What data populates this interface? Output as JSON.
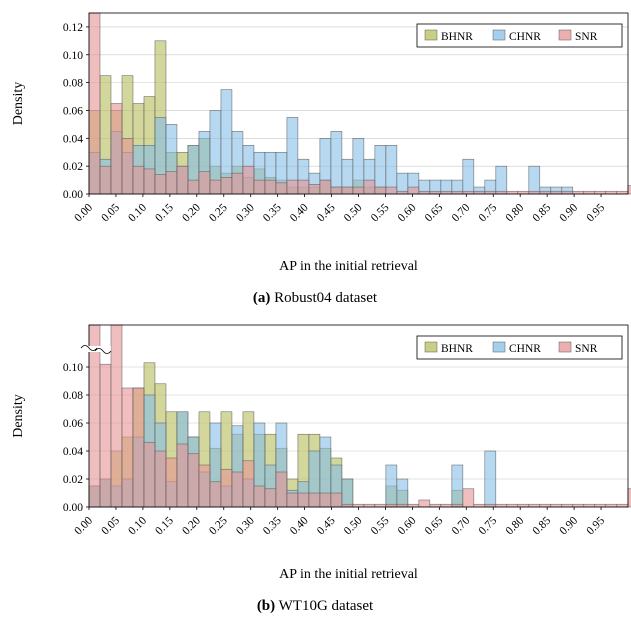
{
  "chart_data": [
    {
      "type": "bar",
      "caption_label": "(a)",
      "caption_text": "Robust04 dataset",
      "xlabel": "AP in the initial retrieval",
      "ylabel": "Density",
      "xlim": [
        0.0,
        1.0
      ],
      "ylim": [
        0,
        0.13
      ],
      "bin_width": 0.0204,
      "x_ticks": [
        "0.00",
        "0.05",
        "0.10",
        "0.15",
        "0.20",
        "0.25",
        "0.30",
        "0.35",
        "0.40",
        "0.45",
        "0.50",
        "0.55",
        "0.60",
        "0.65",
        "0.70",
        "0.75",
        "0.80",
        "0.85",
        "0.90",
        "0.95"
      ],
      "y_ticks": [
        "0.00",
        "0.02",
        "0.04",
        "0.06",
        "0.08",
        "0.10",
        "0.12"
      ],
      "legend_position": "top-right",
      "grid": "horizontal",
      "series": [
        {
          "name": "BHNR",
          "color": "#b5bd5a",
          "values": [
            0.06,
            0.085,
            0.06,
            0.085,
            0.065,
            0.07,
            0.11,
            0.03,
            0.03,
            0.035,
            0.04,
            0.02,
            0.015,
            0.02,
            0.012,
            0.018,
            0.012,
            0.01,
            0.005,
            0.005,
            0.005,
            0.01,
            0.005,
            0.005,
            0.01,
            0.005,
            0.005,
            0,
            0,
            0,
            0,
            0,
            0,
            0,
            0,
            0,
            0,
            0,
            0,
            0,
            0,
            0,
            0,
            0,
            0,
            0,
            0,
            0,
            0,
            0
          ]
        },
        {
          "name": "CHNR",
          "color": "#86bee8",
          "values": [
            0.03,
            0.025,
            0.045,
            0.03,
            0.035,
            0.035,
            0.055,
            0.05,
            0.02,
            0.035,
            0.045,
            0.06,
            0.075,
            0.045,
            0.035,
            0.03,
            0.03,
            0.03,
            0.055,
            0.025,
            0.015,
            0.04,
            0.045,
            0.025,
            0.04,
            0.025,
            0.035,
            0.035,
            0.015,
            0.015,
            0.01,
            0.01,
            0.01,
            0.01,
            0.025,
            0.005,
            0.01,
            0.02,
            0,
            0,
            0.02,
            0.005,
            0.005,
            0.005,
            0,
            0,
            0,
            0,
            0,
            0
          ]
        },
        {
          "name": "SNR",
          "color": "#e69394",
          "values": [
            0.13,
            0.02,
            0.065,
            0.04,
            0.02,
            0.018,
            0.014,
            0.016,
            0.02,
            0.01,
            0.016,
            0.01,
            0.012,
            0.015,
            0.02,
            0.01,
            0.01,
            0.008,
            0.01,
            0.01,
            0.007,
            0.01,
            0.005,
            0.005,
            0.005,
            0.01,
            0.005,
            0.005,
            0.002,
            0.005,
            0.002,
            0.002,
            0.002,
            0.002,
            0.002,
            0.002,
            0.002,
            0.002,
            0.002,
            0.002,
            0.002,
            0.002,
            0.002,
            0.002,
            0.002,
            0.002,
            0.002,
            0.002,
            0.002,
            0.006
          ]
        }
      ]
    },
    {
      "type": "bar",
      "caption_label": "(b)",
      "caption_text": "WT10G dataset",
      "xlabel": "AP in the initial retrieval",
      "ylabel": "Density",
      "xlim": [
        0.0,
        1.0
      ],
      "ylim": [
        0,
        0.13
      ],
      "axis_break": true,
      "bin_width": 0.0204,
      "x_ticks": [
        "0.00",
        "0.05",
        "0.10",
        "0.15",
        "0.20",
        "0.25",
        "0.30",
        "0.35",
        "0.40",
        "0.45",
        "0.50",
        "0.55",
        "0.60",
        "0.65",
        "0.70",
        "0.75",
        "0.80",
        "0.85",
        "0.90",
        "0.95"
      ],
      "y_ticks": [
        "0.00",
        "0.02",
        "0.04",
        "0.06",
        "0.08",
        "0.10"
      ],
      "legend_position": "top-right",
      "grid": "horizontal",
      "series": [
        {
          "name": "BHNR",
          "color": "#b5bd5a",
          "values": [
            0.015,
            0.02,
            0.04,
            0.05,
            0.085,
            0.103,
            0.088,
            0.068,
            0.068,
            0.05,
            0.068,
            0.042,
            0.068,
            0.052,
            0.068,
            0.052,
            0.052,
            0.042,
            0.02,
            0.052,
            0.052,
            0.042,
            0.035,
            0.02,
            0,
            0,
            0,
            0.015,
            0.012,
            0,
            0,
            0,
            0,
            0.012,
            0,
            0,
            0,
            0,
            0,
            0,
            0,
            0,
            0,
            0,
            0,
            0,
            0,
            0,
            0,
            0
          ]
        },
        {
          "name": "CHNR",
          "color": "#86bee8",
          "values": [
            0.015,
            0.02,
            0.015,
            0.02,
            0.05,
            0.08,
            0.06,
            0.018,
            0.068,
            0.05,
            0.025,
            0.06,
            0.015,
            0.058,
            0.02,
            0.06,
            0.03,
            0.06,
            0.012,
            0.018,
            0.04,
            0.05,
            0.03,
            0.02,
            0,
            0,
            0,
            0.03,
            0.02,
            0,
            0,
            0,
            0,
            0.03,
            0,
            0,
            0.04,
            0,
            0,
            0,
            0,
            0,
            0,
            0,
            0,
            0,
            0,
            0,
            0,
            0
          ]
        },
        {
          "name": "SNR",
          "color": "#e69394",
          "values": [
            0.13,
            0.102,
            0.13,
            0.085,
            0.085,
            0.046,
            0.04,
            0.035,
            0.045,
            0.038,
            0.03,
            0.018,
            0.027,
            0.025,
            0.033,
            0.015,
            0.013,
            0.025,
            0.01,
            0.01,
            0.01,
            0.01,
            0.01,
            0.002,
            0.002,
            0.002,
            0.002,
            0.002,
            0.002,
            0.002,
            0.005,
            0.002,
            0.002,
            0.002,
            0.013,
            0.002,
            0.002,
            0.002,
            0.002,
            0.002,
            0.002,
            0.002,
            0.002,
            0.002,
            0.002,
            0.002,
            0.002,
            0.002,
            0.002,
            0.013
          ]
        }
      ]
    }
  ]
}
